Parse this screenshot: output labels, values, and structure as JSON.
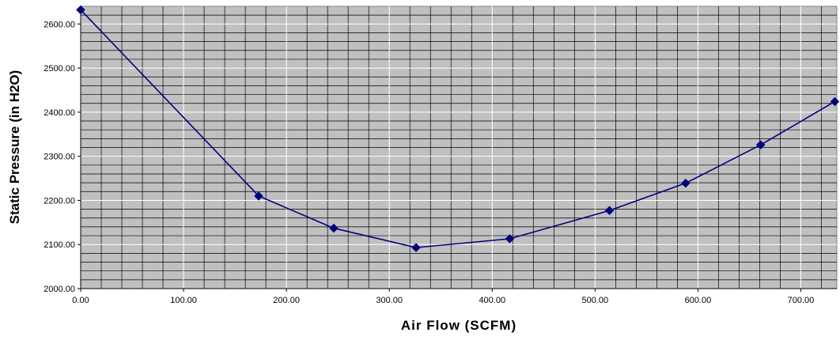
{
  "chart_data": {
    "type": "line",
    "xlabel": "Air Flow (SCFM)",
    "ylabel": "Static Pressure (in H2O)",
    "xlim": [
      0,
      735
    ],
    "ylim": [
      2000,
      2640
    ],
    "x_ticks": [
      "0.00",
      "100.00",
      "200.00",
      "300.00",
      "400.00",
      "500.00",
      "600.00",
      "700.00"
    ],
    "x_tick_values": [
      0,
      100,
      200,
      300,
      400,
      500,
      600,
      700
    ],
    "y_ticks": [
      "2000.00",
      "2100.00",
      "2200.00",
      "2300.00",
      "2400.00",
      "2500.00",
      "2600.00"
    ],
    "y_tick_values": [
      2000,
      2100,
      2200,
      2300,
      2400,
      2500,
      2600
    ],
    "grid": true,
    "legend": "none",
    "series": [
      {
        "x": [
          0,
          173,
          246,
          326,
          417,
          514,
          588,
          661,
          733
        ],
        "y": [
          2632,
          2210,
          2137,
          2093,
          2113,
          2177,
          2239,
          2326,
          2424
        ]
      }
    ],
    "colors": {
      "plot_background": "#c0c0c0",
      "major_grid": "#ffffff",
      "minor_grid": "#000000",
      "series_line": "#000080",
      "marker": "#000080"
    }
  }
}
